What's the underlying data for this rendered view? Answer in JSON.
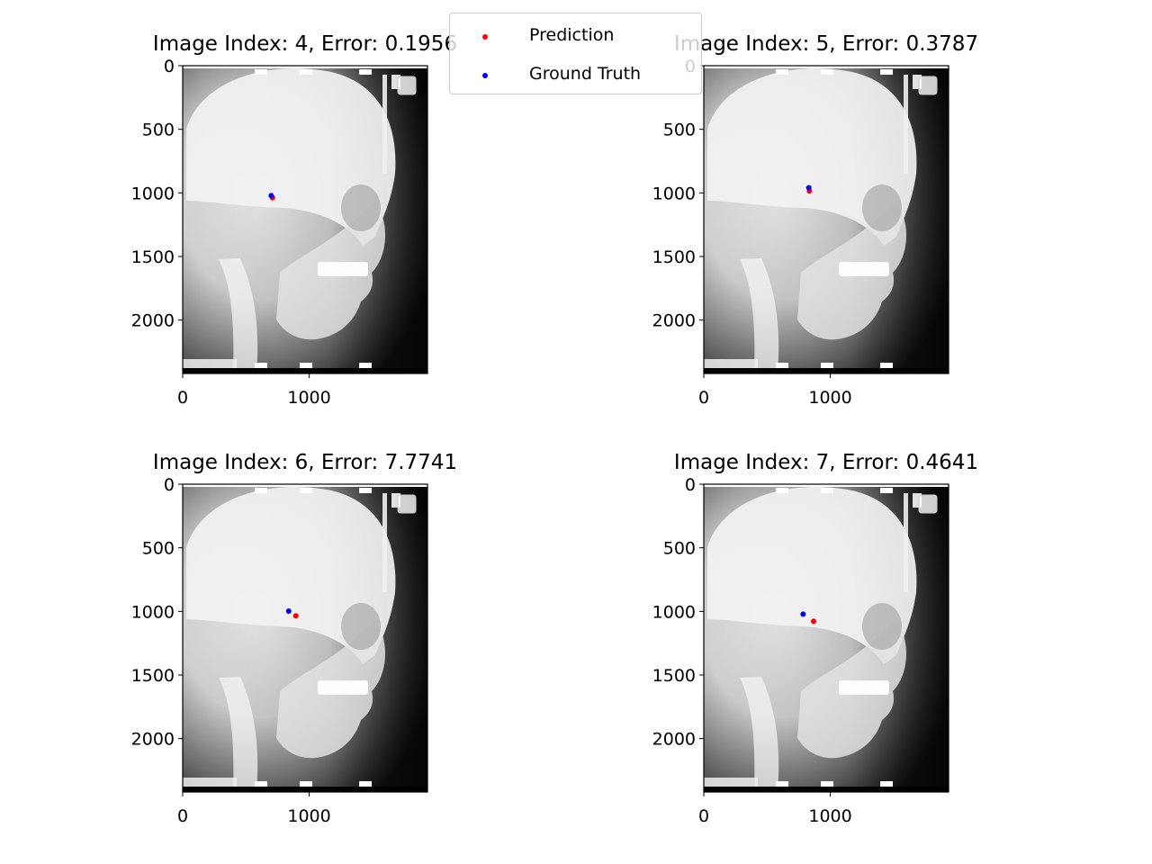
{
  "chart_data": [
    {
      "type": "scatter",
      "title": "Image Index: 4, Error: 0.1956",
      "xlim": [
        0,
        1935
      ],
      "ylim": [
        2420,
        0
      ],
      "xticks": [
        0,
        1000
      ],
      "yticks": [
        0,
        500,
        1000,
        1500,
        2000
      ],
      "series": [
        {
          "name": "Prediction",
          "color": "#ff0000",
          "x": [
            710
          ],
          "y": [
            1038
          ]
        },
        {
          "name": "Ground Truth",
          "color": "#0000ff",
          "x": [
            700
          ],
          "y": [
            1022
          ]
        }
      ]
    },
    {
      "type": "scatter",
      "title": "Image Index: 5, Error: 0.3787",
      "xlim": [
        0,
        1935
      ],
      "ylim": [
        2420,
        0
      ],
      "xticks": [
        0,
        1000
      ],
      "yticks": [
        0,
        500,
        1000,
        1500,
        2000
      ],
      "series": [
        {
          "name": "Prediction",
          "color": "#ff0000",
          "x": [
            835
          ],
          "y": [
            985
          ]
        },
        {
          "name": "Ground Truth",
          "color": "#0000ff",
          "x": [
            830
          ],
          "y": [
            960
          ]
        }
      ]
    },
    {
      "type": "scatter",
      "title": "Image Index: 6, Error: 7.7741",
      "xlim": [
        0,
        1935
      ],
      "ylim": [
        2420,
        0
      ],
      "xticks": [
        0,
        1000
      ],
      "yticks": [
        0,
        500,
        1000,
        1500,
        2000
      ],
      "series": [
        {
          "name": "Prediction",
          "color": "#ff0000",
          "x": [
            895
          ],
          "y": [
            1035
          ]
        },
        {
          "name": "Ground Truth",
          "color": "#0000ff",
          "x": [
            838
          ],
          "y": [
            998
          ]
        }
      ]
    },
    {
      "type": "scatter",
      "title": "Image Index: 7, Error: 0.4641",
      "xlim": [
        0,
        1935
      ],
      "ylim": [
        2420,
        0
      ],
      "xticks": [
        0,
        1000
      ],
      "yticks": [
        0,
        500,
        1000,
        1500,
        2000
      ],
      "series": [
        {
          "name": "Prediction",
          "color": "#ff0000",
          "x": [
            868
          ],
          "y": [
            1078
          ]
        },
        {
          "name": "Ground Truth",
          "color": "#0000ff",
          "x": [
            785
          ],
          "y": [
            1022
          ]
        }
      ]
    }
  ],
  "legend": {
    "items": [
      {
        "label": "Prediction",
        "color": "#ff0000"
      },
      {
        "label": "Ground Truth",
        "color": "#0000ff"
      }
    ]
  }
}
